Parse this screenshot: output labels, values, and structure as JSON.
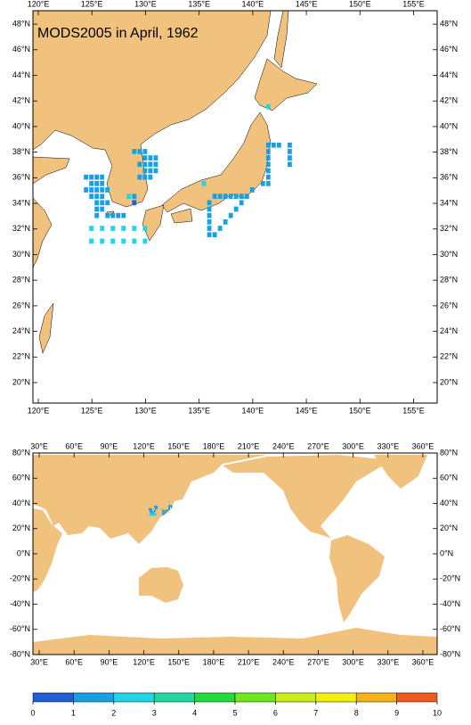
{
  "title": "MODS2005 in April, 1962",
  "top_map": {
    "lonlim": [
      119.5,
      157.2
    ],
    "latlim": [
      18.4,
      49.05
    ],
    "xticks": [
      {
        "value": 120,
        "label": "120°E"
      },
      {
        "value": 125,
        "label": "125°E"
      },
      {
        "value": 130,
        "label": "130°E"
      },
      {
        "value": 135,
        "label": "135°E"
      },
      {
        "value": 140,
        "label": "140°E"
      },
      {
        "value": 145,
        "label": "145°E"
      },
      {
        "value": 150,
        "label": "150°E"
      },
      {
        "value": 155,
        "label": "155°E"
      }
    ],
    "yticks": [
      {
        "value": 20,
        "label": "20°N"
      },
      {
        "value": 22,
        "label": "22°N"
      },
      {
        "value": 24,
        "label": "24°N"
      },
      {
        "value": 26,
        "label": "26°N"
      },
      {
        "value": 28,
        "label": "28°N"
      },
      {
        "value": 30,
        "label": "30°N"
      },
      {
        "value": 32,
        "label": "32°N"
      },
      {
        "value": 34,
        "label": "34°N"
      },
      {
        "value": 36,
        "label": "36°N"
      },
      {
        "value": 38,
        "label": "38°N"
      },
      {
        "value": 40,
        "label": "40°N"
      },
      {
        "value": 42,
        "label": "42°N"
      },
      {
        "value": 44,
        "label": "44°N"
      },
      {
        "value": 46,
        "label": "46°N"
      },
      {
        "value": 48,
        "label": "48°N"
      }
    ]
  },
  "world_map": {
    "lonlim": [
      24.6,
      372.3
    ],
    "latlim": [
      -80,
      80
    ],
    "xticks": [
      {
        "value": 30,
        "label": "30°E"
      },
      {
        "value": 60,
        "label": "60°E"
      },
      {
        "value": 90,
        "label": "90°E"
      },
      {
        "value": 120,
        "label": "120°E"
      },
      {
        "value": 150,
        "label": "150°E"
      },
      {
        "value": 180,
        "label": "180°E"
      },
      {
        "value": 210,
        "label": "210°E"
      },
      {
        "value": 240,
        "label": "240°E"
      },
      {
        "value": 270,
        "label": "270°E"
      },
      {
        "value": 300,
        "label": "300°E"
      },
      {
        "value": 330,
        "label": "330°E"
      },
      {
        "value": 360,
        "label": "360°E"
      }
    ],
    "yticks": [
      {
        "value": -80,
        "label": "-80°N"
      },
      {
        "value": -60,
        "label": "-60°N"
      },
      {
        "value": -40,
        "label": "-40°N"
      },
      {
        "value": -20,
        "label": "-20°N"
      },
      {
        "value": 0,
        "label": "0°N"
      },
      {
        "value": 20,
        "label": "20°N"
      },
      {
        "value": 40,
        "label": "40°N"
      },
      {
        "value": 60,
        "label": "60°N"
      },
      {
        "value": 80,
        "label": "80°N"
      }
    ]
  },
  "colorbar": {
    "ticks": [
      0,
      1,
      2,
      3,
      4,
      5,
      6,
      7,
      8,
      9,
      10
    ],
    "colors": [
      "#1f5fd6",
      "#16a0e8",
      "#1ed6e6",
      "#22d8a0",
      "#1edc3c",
      "#6ee81a",
      "#c8ef16",
      "#f0ef10",
      "#f5b318",
      "#f05a1c"
    ]
  },
  "cells": {
    "lon": [
      129,
      129.5,
      130,
      130,
      130.5,
      131,
      129.5,
      130,
      130.5,
      131,
      130,
      130.5,
      131,
      129.5,
      130,
      130.5,
      124.5,
      125,
      125.5,
      126,
      125,
      125.5,
      126,
      124.5,
      125,
      125.5,
      126,
      126.5,
      125,
      125.5,
      126,
      125.5,
      126,
      126.5,
      125.5,
      126,
      125.5,
      126.5,
      127,
      127.5,
      128,
      128.5,
      129,
      129,
      125,
      126,
      127,
      128,
      129,
      130,
      125,
      126,
      127,
      128,
      129,
      130,
      135.5,
      136.5,
      137,
      137.5,
      138,
      138.5,
      139,
      136,
      136,
      136,
      136,
      136,
      136,
      136.5,
      137,
      137.5,
      138,
      138.5,
      139,
      139.5,
      140,
      141.5,
      141.5,
      142,
      142.5,
      143.5,
      141.5,
      143.5,
      141.5,
      143.5,
      141.5,
      143.5,
      141.5,
      141.5,
      141,
      141.5
    ],
    "lat": [
      38,
      38,
      38,
      37.5,
      37.5,
      37.5,
      37,
      37,
      37,
      37,
      36.5,
      36.5,
      36.5,
      36,
      36,
      36,
      36,
      36,
      36,
      36,
      35.5,
      35.5,
      35.5,
      35,
      35,
      35,
      35,
      35,
      34.5,
      34.5,
      34.5,
      34,
      34,
      34,
      33.5,
      33.5,
      33,
      33,
      33,
      33,
      33,
      34.5,
      34.5,
      34,
      32,
      32,
      32,
      32,
      32,
      32,
      31,
      31,
      31,
      31,
      31,
      31,
      35.5,
      34.5,
      34.5,
      34.5,
      34.5,
      34.5,
      34.5,
      34,
      33.5,
      33,
      32.5,
      32,
      31.5,
      31.5,
      32,
      32.5,
      33,
      33.5,
      34,
      34.5,
      35,
      41.5,
      38.5,
      38.5,
      38.5,
      38.5,
      38,
      38,
      37.5,
      37.5,
      37,
      37,
      36.5,
      36,
      35.5,
      35.5
    ],
    "value": [
      1,
      1,
      1,
      1,
      1,
      1,
      1,
      1,
      1,
      1,
      1,
      1,
      1,
      1,
      1,
      1,
      1,
      1,
      1,
      1,
      1,
      1,
      1,
      1,
      1,
      1,
      1,
      1,
      1,
      1,
      1,
      1,
      1,
      1,
      1,
      1,
      1,
      1,
      1,
      1,
      1,
      2,
      1,
      0,
      2,
      2,
      2,
      2,
      2,
      2,
      2,
      2,
      2,
      2,
      2,
      2,
      2,
      1,
      1,
      1,
      1,
      1,
      1,
      1,
      1,
      1,
      1,
      1,
      1,
      1,
      1,
      1,
      1,
      1,
      1,
      1,
      1,
      2,
      1,
      1,
      1,
      1,
      1,
      1,
      1,
      1,
      1,
      1,
      1,
      1,
      1,
      1
    ]
  }
}
